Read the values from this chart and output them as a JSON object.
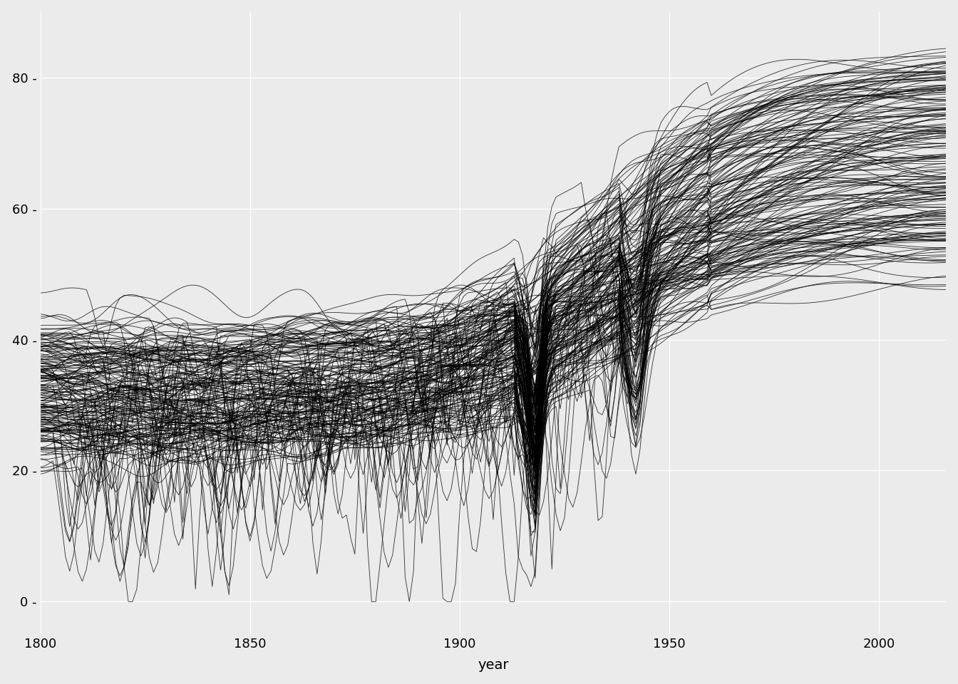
{
  "title": "",
  "xlabel": "year",
  "ylabel": "",
  "xlim": [
    1800,
    2016
  ],
  "ylim": [
    -5,
    90
  ],
  "yticks": [
    0,
    20,
    40,
    60,
    80
  ],
  "xticks": [
    1800,
    1850,
    1900,
    1950,
    2000
  ],
  "background_color": "#EBEBEB",
  "line_color": "#000000",
  "line_alpha": 0.8,
  "line_width": 0.6,
  "n_countries": 187,
  "year_start": 1800,
  "year_end": 2016,
  "seed": 42
}
